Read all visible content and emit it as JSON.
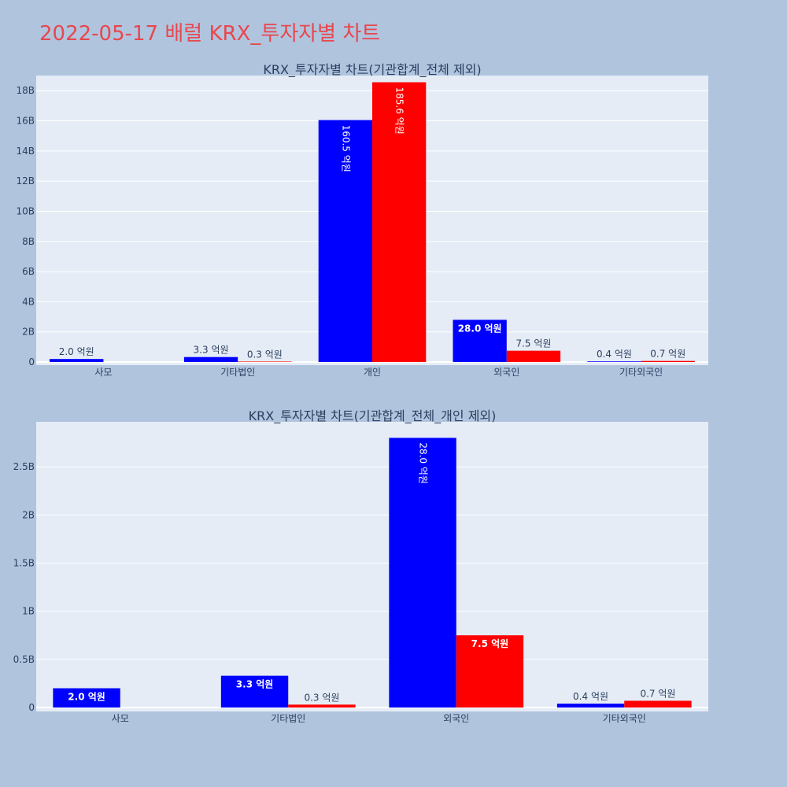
{
  "page": {
    "title": "2022-05-17 배럴 KRX_투자자별 차트",
    "background": "#b0c4de"
  },
  "colors": {
    "series_1": "#0000ff",
    "series_2": "#ff0000",
    "plot_bg": "#e5ecf6",
    "title": "#e8474d"
  },
  "chart_data": [
    {
      "type": "bar",
      "title": "KRX_투자자별 차트(기관합계_전체 제외)",
      "categories": [
        "사모",
        "기타법인",
        "개인",
        "외국인",
        "기타외국인"
      ],
      "series": [
        {
          "color": "#0000ff",
          "values": [
            200000000,
            330000000,
            16050000000,
            2800000000,
            40000000
          ],
          "labels": [
            "2.0 억원",
            "3.3 억원",
            "160.5 억원",
            "28.0 억원",
            "0.4 억원"
          ]
        },
        {
          "color": "#ff0000",
          "values": [
            0,
            30000000,
            18560000000,
            750000000,
            70000000
          ],
          "labels": [
            "",
            "0.3 억원",
            "185.6 억원",
            "7.5 억원",
            "0.7 억원"
          ]
        }
      ],
      "yticks": [
        0,
        2000000000,
        4000000000,
        6000000000,
        8000000000,
        10000000000,
        12000000000,
        14000000000,
        16000000000,
        18000000000
      ],
      "ytick_labels": [
        "0",
        "2B",
        "4B",
        "6B",
        "8B",
        "10B",
        "12B",
        "14B",
        "16B",
        "18B"
      ],
      "ylim": [
        0,
        18900000000
      ],
      "grid": true,
      "legend": "none"
    },
    {
      "type": "bar",
      "title": "KRX_투자자별 차트(기관합계_전체_개인 제외)",
      "categories": [
        "사모",
        "기타법인",
        "외국인",
        "기타외국인"
      ],
      "series": [
        {
          "color": "#0000ff",
          "values": [
            200000000,
            330000000,
            2800000000,
            40000000
          ],
          "labels": [
            "2.0 억원",
            "3.3 억원",
            "28.0 억원",
            "0.4 억원"
          ]
        },
        {
          "color": "#ff0000",
          "values": [
            0,
            30000000,
            750000000,
            70000000
          ],
          "labels": [
            "",
            "0.3 억원",
            "7.5 억원",
            "0.7 억원"
          ]
        }
      ],
      "yticks": [
        0,
        500000000,
        1000000000,
        1500000000,
        2000000000,
        2500000000
      ],
      "ytick_labels": [
        "0",
        "0.5B",
        "1B",
        "1.5B",
        "2B",
        "2.5B"
      ],
      "ylim": [
        0,
        2950000000
      ],
      "grid": true,
      "legend": "none"
    }
  ]
}
